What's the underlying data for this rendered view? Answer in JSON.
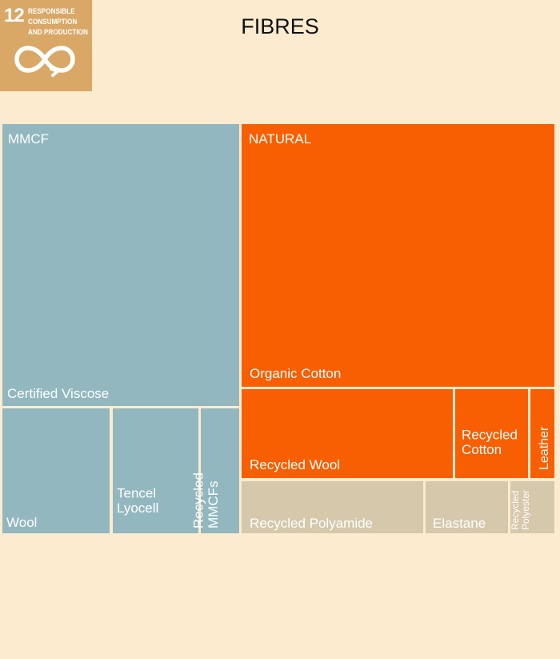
{
  "badge": {
    "number": "12",
    "lines": [
      "RESPONSIBLE",
      "CONSUMPTION",
      "AND PRODUCTION"
    ],
    "color": "#d9a866",
    "icon": "infinity-loop-icon"
  },
  "chart_data": {
    "type": "treemap",
    "title": "FIBRES",
    "groups": [
      {
        "name": "MMCF",
        "color": "#92b7bf"
      },
      {
        "name": "NATURAL",
        "color": "#f85f02"
      },
      {
        "name": "",
        "color": "#d5c8ab"
      }
    ],
    "items": [
      {
        "label": "Certified Viscose",
        "group": "MMCF",
        "value": 27.3
      },
      {
        "label": "Wool",
        "group": "MMCF",
        "value": 5.6
      },
      {
        "label": "Tencel Lyocell",
        "group": "MMCF",
        "value": 4.4
      },
      {
        "label": "Recycled MMCFs",
        "group": "MMCF",
        "value": 1.8
      },
      {
        "label": "Organic Cotton",
        "group": "NATURAL",
        "value": 32.9
      },
      {
        "label": "Recycled Wool",
        "group": "NATURAL",
        "value": 7.9
      },
      {
        "label": "Recycled Cotton",
        "group": "NATURAL",
        "value": 2.9
      },
      {
        "label": "Leather",
        "group": "NATURAL",
        "value": 0.9
      },
      {
        "label": "Recycled Polyamide",
        "group": "",
        "value": 4.0
      },
      {
        "label": "Elastane",
        "group": "",
        "value": 1.7
      },
      {
        "label": "Recycled Polyester",
        "group": "",
        "value": 0.9
      }
    ]
  }
}
